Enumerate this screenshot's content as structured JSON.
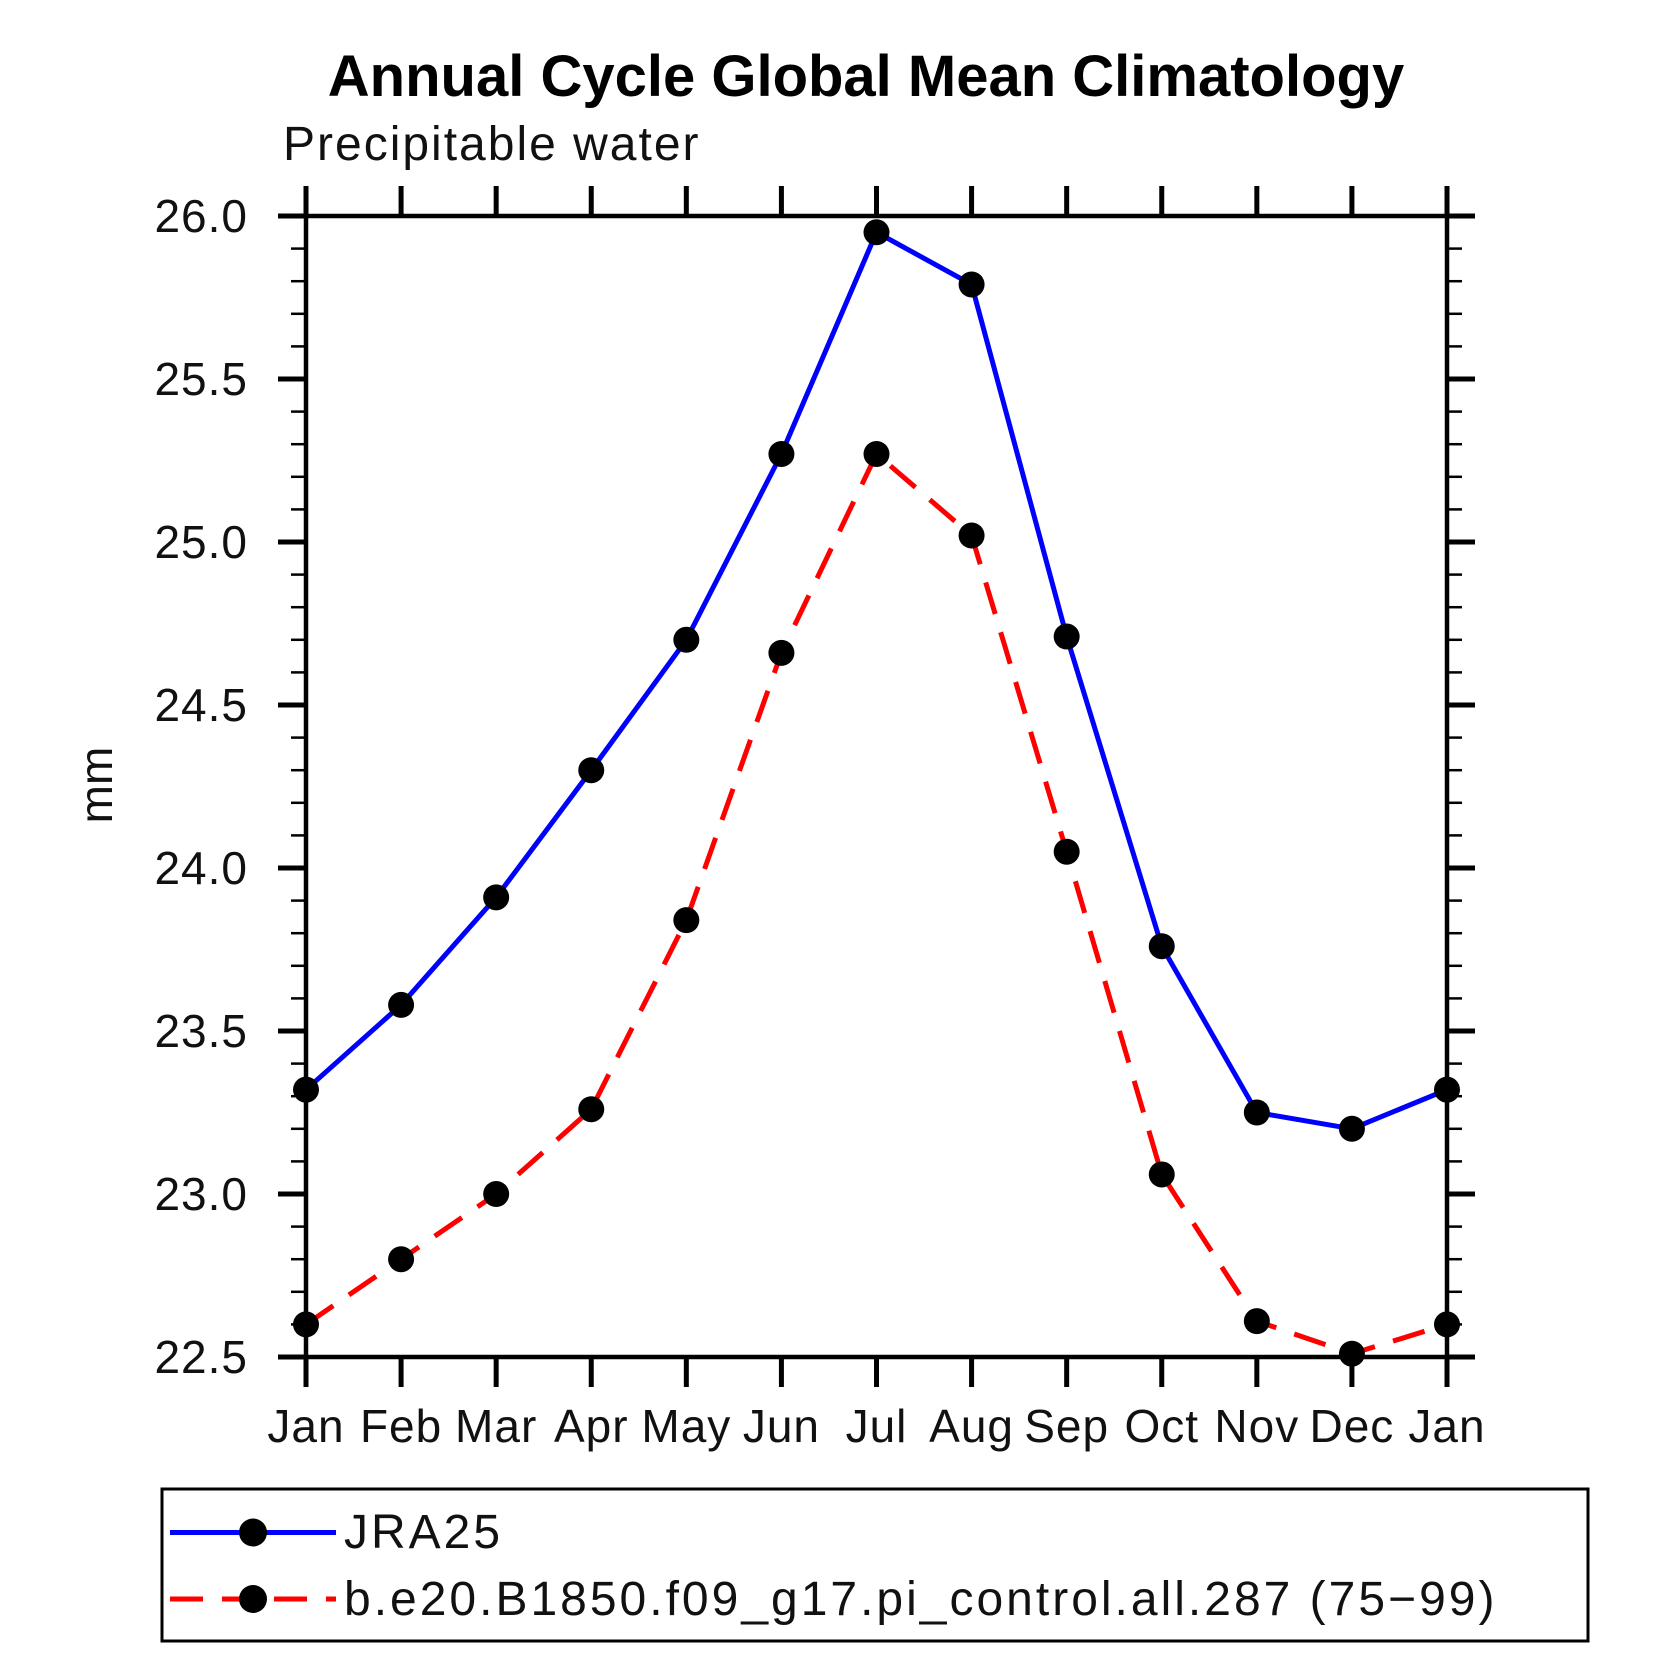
{
  "chart_data": {
    "type": "line",
    "title": "Annual Cycle Global Mean Climatology",
    "subtitle": "Precipitable water",
    "ylabel": "mm",
    "xlabel": "",
    "categories": [
      "Jan",
      "Feb",
      "Mar",
      "Apr",
      "May",
      "Jun",
      "Jul",
      "Aug",
      "Sep",
      "Oct",
      "Nov",
      "Dec",
      "Jan"
    ],
    "ylim": [
      22.5,
      26.0
    ],
    "ytick_major_step": 0.5,
    "ytick_minor_step": 0.1,
    "ytick_labels": [
      "22.5",
      "23.0",
      "23.5",
      "24.0",
      "24.5",
      "25.0",
      "25.5",
      "26.0"
    ],
    "grid": false,
    "legend_position": "bottom-left",
    "axis_color": "#000000",
    "marker_color": "#000000",
    "series": [
      {
        "name": "JRA25",
        "color": "#0000ff",
        "line_style": "solid",
        "marker": "filled-circle",
        "values": [
          23.32,
          23.58,
          23.91,
          24.3,
          24.7,
          25.27,
          25.95,
          25.79,
          24.71,
          23.76,
          23.25,
          23.2,
          23.32
        ]
      },
      {
        "name": "b.e20.B1850.f09_g17.pi_control.all.287 (75−99)",
        "color": "#ff0000",
        "line_style": "dashed",
        "marker": "filled-circle",
        "values": [
          22.6,
          22.8,
          23.0,
          23.26,
          23.84,
          24.66,
          25.27,
          25.02,
          24.05,
          23.06,
          22.61,
          22.51,
          22.6
        ]
      }
    ]
  }
}
